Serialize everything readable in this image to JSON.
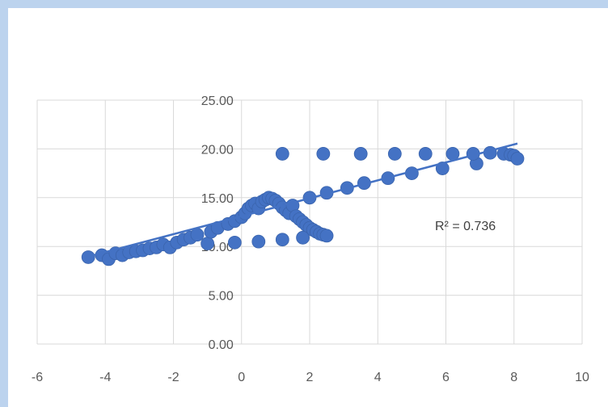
{
  "chart_data": {
    "type": "scatter",
    "title": "",
    "xlabel": "",
    "ylabel": "",
    "xlim": [
      -6,
      10
    ],
    "ylim": [
      0,
      25
    ],
    "x_ticks": [
      "-6",
      "-4",
      "-2",
      "0",
      "2",
      "4",
      "6",
      "8",
      "10"
    ],
    "y_ticks": [
      "0.00",
      "5.00",
      "10.00",
      "15.00",
      "20.00",
      "25.00"
    ],
    "grid": true,
    "legend": "none",
    "marker_color": "#4472c4",
    "trendline": {
      "type": "linear",
      "slope": 0.92,
      "intercept": 13.1,
      "x_range": [
        -4.6,
        8.1
      ],
      "color": "#4472c4"
    },
    "annotations": [
      {
        "text": "R² = 0.736"
      }
    ],
    "series": [
      {
        "points": [
          [
            -4.5,
            8.9
          ],
          [
            -4.1,
            9.1
          ],
          [
            -3.9,
            8.7
          ],
          [
            -3.7,
            9.3
          ],
          [
            -3.5,
            9.1
          ],
          [
            -3.3,
            9.4
          ],
          [
            -3.1,
            9.5
          ],
          [
            -2.9,
            9.6
          ],
          [
            -2.7,
            9.8
          ],
          [
            -2.5,
            9.9
          ],
          [
            -2.3,
            10.2
          ],
          [
            -2.1,
            9.9
          ],
          [
            -1.9,
            10.4
          ],
          [
            -1.7,
            10.7
          ],
          [
            -1.5,
            10.9
          ],
          [
            -1.3,
            11.2
          ],
          [
            -1.0,
            10.3
          ],
          [
            -0.9,
            11.5
          ],
          [
            -0.7,
            11.9
          ],
          [
            -0.4,
            12.3
          ],
          [
            -0.2,
            12.6
          ],
          [
            0.0,
            13.0
          ],
          [
            0.1,
            13.4
          ],
          [
            0.2,
            13.9
          ],
          [
            0.3,
            14.2
          ],
          [
            0.4,
            14.4
          ],
          [
            0.5,
            13.9
          ],
          [
            0.6,
            14.6
          ],
          [
            0.7,
            14.8
          ],
          [
            0.8,
            15.0
          ],
          [
            0.9,
            14.9
          ],
          [
            1.0,
            14.7
          ],
          [
            1.1,
            14.4
          ],
          [
            1.2,
            14.0
          ],
          [
            1.3,
            13.7
          ],
          [
            1.4,
            13.4
          ],
          [
            1.5,
            14.2
          ],
          [
            1.6,
            13.1
          ],
          [
            1.7,
            12.8
          ],
          [
            1.8,
            12.5
          ],
          [
            1.9,
            12.2
          ],
          [
            2.0,
            11.9
          ],
          [
            2.1,
            11.7
          ],
          [
            2.2,
            11.5
          ],
          [
            2.3,
            11.3
          ],
          [
            2.4,
            11.2
          ],
          [
            2.5,
            11.1
          ],
          [
            2.0,
            15.0
          ],
          [
            2.5,
            15.5
          ],
          [
            3.1,
            16.0
          ],
          [
            3.6,
            16.5
          ],
          [
            4.3,
            17.0
          ],
          [
            5.0,
            17.5
          ],
          [
            5.9,
            18.0
          ],
          [
            6.9,
            18.5
          ],
          [
            -0.2,
            10.4
          ],
          [
            0.5,
            10.5
          ],
          [
            1.2,
            10.7
          ],
          [
            1.8,
            10.9
          ],
          [
            1.2,
            19.5
          ],
          [
            2.4,
            19.5
          ],
          [
            3.5,
            19.5
          ],
          [
            4.5,
            19.5
          ],
          [
            5.4,
            19.5
          ],
          [
            6.2,
            19.5
          ],
          [
            6.8,
            19.5
          ],
          [
            7.3,
            19.6
          ],
          [
            7.7,
            19.5
          ],
          [
            7.9,
            19.4
          ],
          [
            8.0,
            19.3
          ],
          [
            8.1,
            19.0
          ]
        ]
      }
    ]
  }
}
